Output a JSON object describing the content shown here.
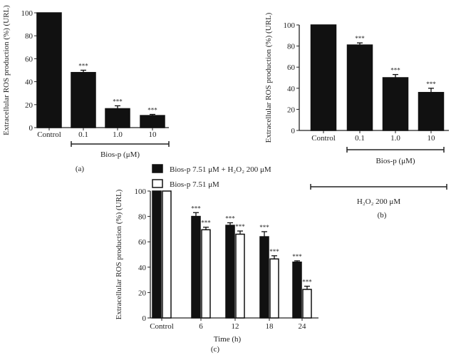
{
  "chart_data": [
    {
      "panel": "a",
      "type": "bar",
      "label": "(a)",
      "ylabel": "Extracellular ROS production (%) (URL)",
      "ylim": [
        0,
        100
      ],
      "yticks": [
        0,
        20,
        40,
        60,
        80,
        100
      ],
      "categories": [
        "Control",
        "0.1",
        "1.0",
        "10"
      ],
      "values": [
        100,
        48,
        16.5,
        10.5
      ],
      "errors": [
        0,
        2,
        2.5,
        1
      ],
      "significance": [
        "",
        "***",
        "***",
        "***"
      ],
      "brackets": [
        {
          "label": "Bios-p (μM)",
          "from": 1,
          "to": 3
        }
      ]
    },
    {
      "panel": "b",
      "type": "bar",
      "label": "(b)",
      "ylabel": "Extracellular ROS production (%) (URL)",
      "ylim": [
        0,
        100
      ],
      "yticks": [
        0,
        20,
        40,
        60,
        80,
        100
      ],
      "categories": [
        "Control",
        "0.1",
        "1.0",
        "10"
      ],
      "values": [
        100,
        81,
        50,
        36
      ],
      "errors": [
        0,
        2,
        3,
        4
      ],
      "significance": [
        "",
        "***",
        "***",
        "***"
      ],
      "brackets": [
        {
          "label": "Bios-p (μM)",
          "from": 1,
          "to": 3
        },
        {
          "label": "H₂O₂ 200 μM",
          "from": 0,
          "to": 3
        }
      ]
    },
    {
      "panel": "c",
      "type": "bar",
      "label": "(c)",
      "ylabel": "Extracellular ROS production (%) (URL)",
      "xlabel": "Time (h)",
      "ylim": [
        0,
        100
      ],
      "yticks": [
        0,
        20,
        40,
        60,
        80,
        100
      ],
      "categories": [
        "Control",
        "6",
        "12",
        "18",
        "24"
      ],
      "series": [
        {
          "name": "Bios-p 7.51 μM + H₂O₂ 200 μM",
          "color": "#111111",
          "values": [
            100,
            80,
            73,
            64,
            44
          ],
          "errors": [
            0,
            3,
            2,
            4,
            1
          ],
          "significance": [
            "",
            "***",
            "***",
            "***",
            "***"
          ]
        },
        {
          "name": "Bios-p 7.51 μM",
          "color": "#ffffff",
          "values": [
            100,
            69.5,
            66,
            46.5,
            22.5
          ],
          "errors": [
            0,
            2,
            2.5,
            2.5,
            2.5
          ],
          "significance": [
            "",
            "***",
            "***",
            "***",
            "***"
          ]
        }
      ]
    }
  ]
}
